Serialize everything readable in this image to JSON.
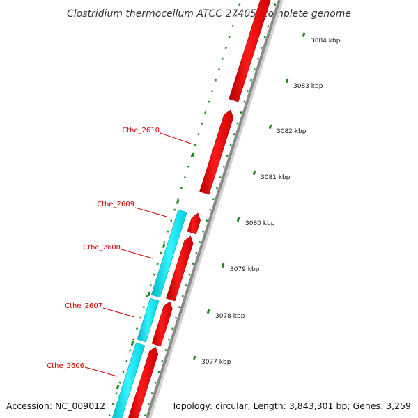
{
  "title": "Clostridium thermocellum ATCC 27405, complete genome",
  "footer": {
    "accession": "Accession: NC_009012",
    "summary": "Topology: circular; Length: 3,843,301 bp; Genes: 3,259"
  },
  "scale_labels": [
    "3084 kbp",
    "3083 kbp",
    "3082 kbp",
    "3081 kbp",
    "3080 kbp",
    "3079 kbp",
    "3078 kbp",
    "3077 kbp"
  ],
  "gene_labels": [
    "Cthe_2610",
    "Cthe_2609",
    "Cthe_2608",
    "Cthe_2607",
    "Cthe_2606"
  ],
  "colors": {
    "forward_gene": "#ff0000",
    "reverse_gene": "#00e5f0",
    "backbone": "#8a8a8a",
    "ticks": "#1a8a1a",
    "label": "#cc0000"
  }
}
